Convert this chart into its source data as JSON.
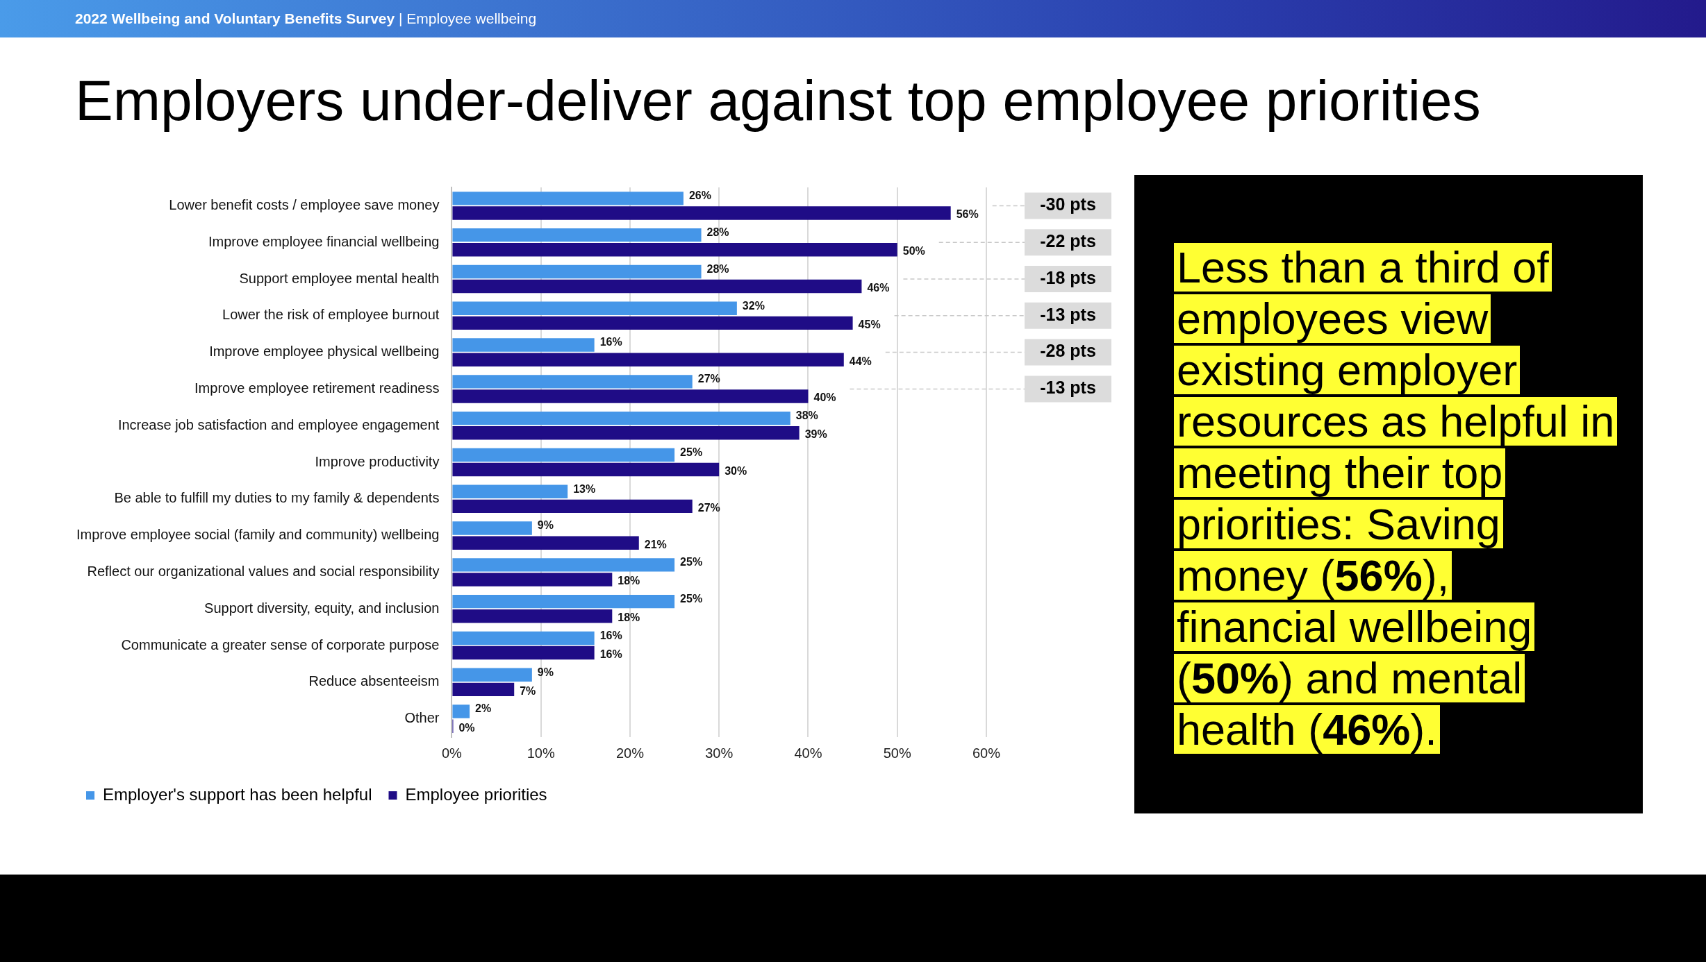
{
  "chart_data": {
    "type": "bar",
    "orientation": "horizontal",
    "title": "Employers under-deliver against top employee priorities",
    "subtitle": "2022 Wellbeing and Voluntary Benefits Survey | Employee wellbeing",
    "categories": [
      "Lower benefit costs / employee save money",
      "Improve employee financial wellbeing",
      "Support employee mental health",
      "Lower the risk of employee burnout",
      "Improve employee physical wellbeing",
      "Improve employee retirement readiness",
      "Increase job satisfaction and employee engagement",
      "Improve productivity",
      "Be able to fulfill my duties to my family & dependents",
      "Improve employee social (family and community) wellbeing",
      "Reflect our organizational values and social responsibility",
      "Support diversity, equity, and inclusion",
      "Communicate a greater sense of corporate purpose",
      "Reduce absenteeism",
      "Other"
    ],
    "series": [
      {
        "name": "Employer's support has been helpful",
        "color": "#4596e8",
        "values": [
          26,
          28,
          28,
          32,
          16,
          27,
          38,
          25,
          13,
          9,
          25,
          25,
          16,
          9,
          2
        ],
        "value_labels": [
          "26%",
          "28%",
          "28%",
          "32%",
          "16%",
          "27%",
          "38%",
          "25%",
          "13%",
          "9%",
          "25%",
          "25%",
          "16%",
          "9%",
          "2%"
        ]
      },
      {
        "name": "Employee priorities",
        "color": "#1f0c86",
        "values": [
          56,
          50,
          46,
          45,
          44,
          40,
          39,
          30,
          27,
          21,
          18,
          18,
          16,
          7,
          0
        ],
        "value_labels": [
          "56%",
          "50%",
          "46%",
          "45%",
          "44%",
          "40%",
          "39%",
          "30%",
          "27%",
          "21%",
          "18%",
          "18%",
          "16%",
          "7%",
          "0%"
        ]
      }
    ],
    "xlim": [
      0,
      60
    ],
    "xticks": [
      {
        "value": 0,
        "label": "0%"
      },
      {
        "value": 10,
        "label": "10%"
      },
      {
        "value": 20,
        "label": "20%"
      },
      {
        "value": 30,
        "label": "30%"
      },
      {
        "value": 40,
        "label": "40%"
      },
      {
        "value": 50,
        "label": "50%"
      },
      {
        "value": 60,
        "label": "60%"
      }
    ],
    "grid": "x",
    "legend": "bottom",
    "annotations": [
      "-30 pts",
      "-22 pts",
      "-18 pts",
      "-13 pts",
      "-28 pts",
      "-13 pts",
      "Less than a third of employees view existing employer resources as helpful in meeting their top priorities: Saving money (56%), financial wellbeing (50%) and mental health (46%)."
    ]
  }
}
